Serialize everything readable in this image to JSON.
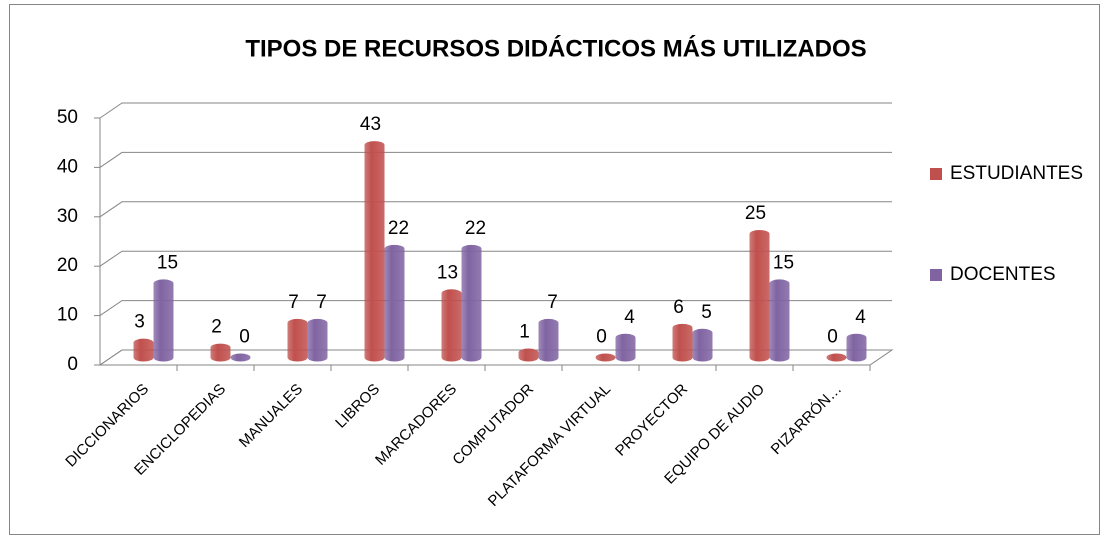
{
  "chart_data": {
    "type": "bar3d",
    "title": "TIPOS DE RECURSOS DIDÁCTICOS MÁS UTILIZADOS",
    "categories": [
      "DICCIONARIOS",
      "ENCICLOPEDIAS",
      "MANUALES",
      "LIBROS",
      "MARCADORES",
      "COMPUTADOR",
      "PLATAFORMA VIRTUAL",
      "PROYECTOR",
      "EQUIPO DE AUDIO",
      "PIZARRÓN…"
    ],
    "series": [
      {
        "name": "ESTUDIANTES",
        "color": "#c0504d",
        "values": [
          3,
          2,
          7,
          43,
          13,
          1,
          0,
          6,
          25,
          0
        ]
      },
      {
        "name": "DOCENTES",
        "color": "#8064a2",
        "values": [
          15,
          0,
          7,
          22,
          22,
          7,
          4,
          5,
          15,
          4
        ]
      }
    ],
    "ylim": [
      0,
      50
    ],
    "yticks": [
      0,
      10,
      20,
      30,
      40,
      50
    ],
    "grid": true,
    "legend": "right"
  }
}
